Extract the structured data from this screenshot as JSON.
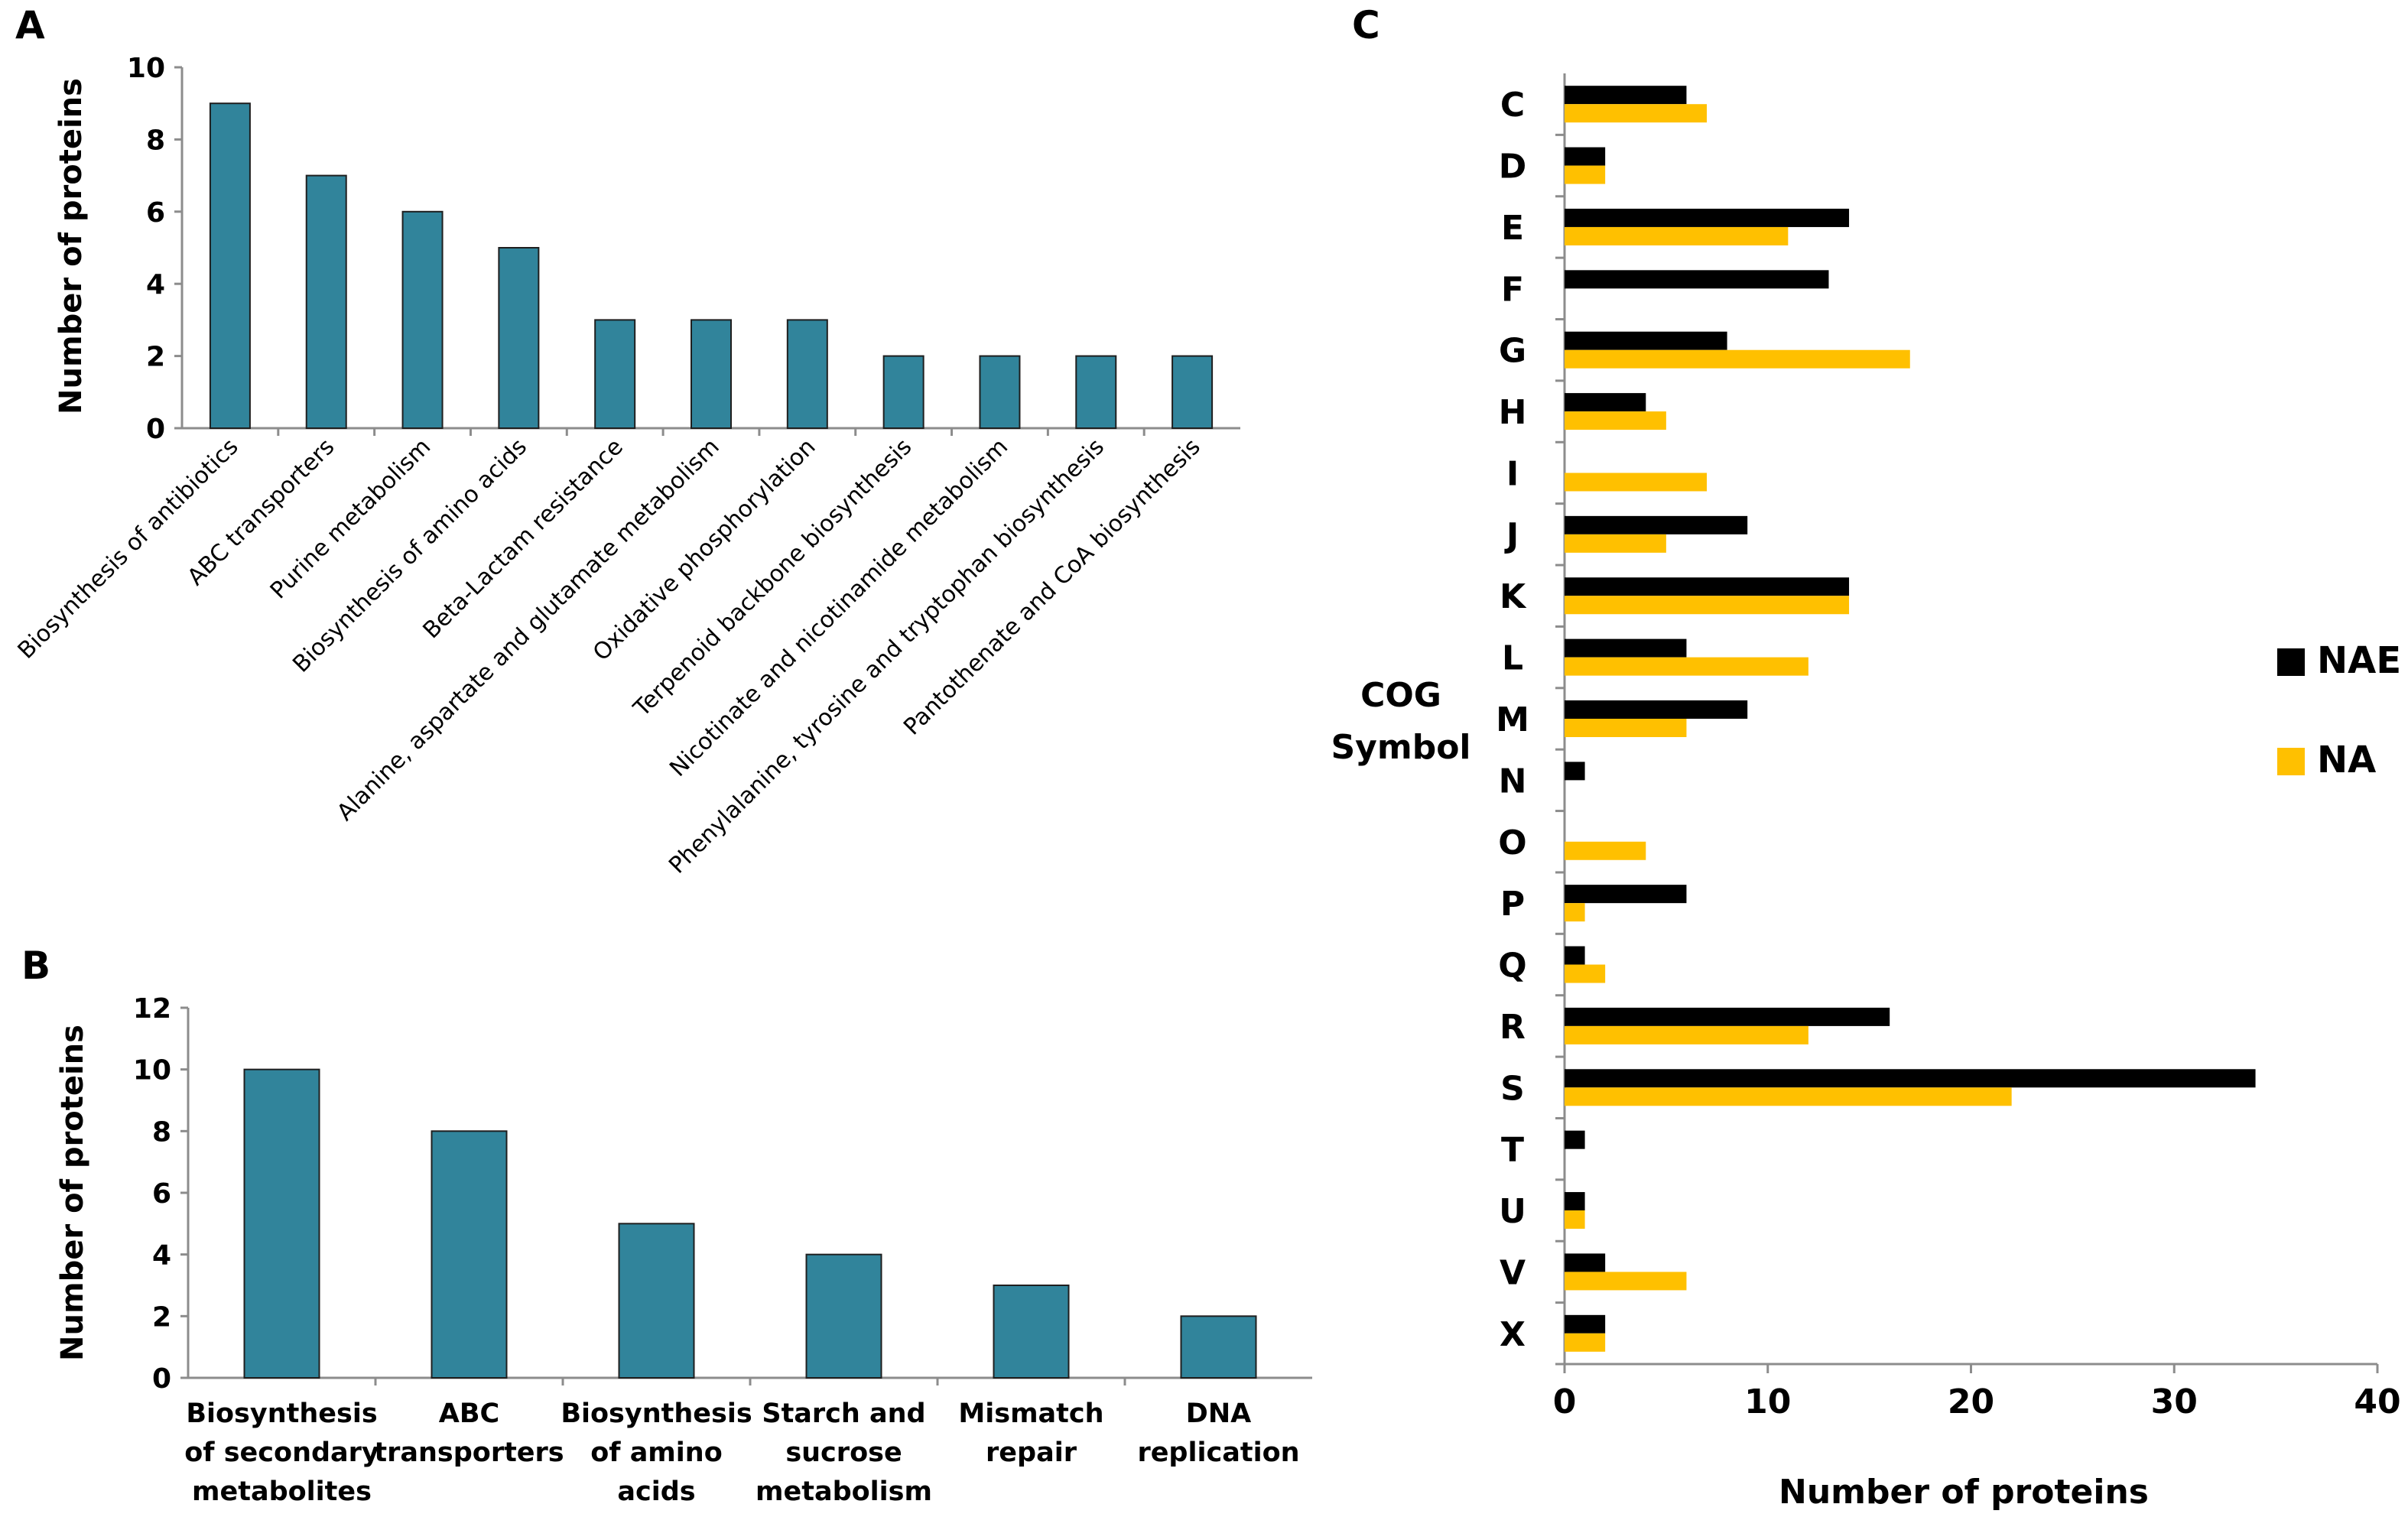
{
  "chart_data": [
    {
      "panel": "A",
      "type": "bar",
      "title": "",
      "xlabel": "",
      "ylabel": "Number of proteins",
      "ylim": [
        0,
        10
      ],
      "yticks": [
        0,
        2,
        4,
        6,
        8,
        10
      ],
      "categories": [
        "Biosynthesis of antibiotics",
        "ABC transporters",
        "Purine metabolism",
        "Biosynthesis of amino acids",
        "Beta-Lactam resistance",
        "Alanine, aspartate and glutamate metabolism",
        "Oxidative phosphorylation",
        "Terpenoid backbone biosynthesis",
        "Nicotinate and nicotinamide metabolism",
        "Phenylalanine, tyrosine and tryptophan biosynthesis",
        "Pantothenate and CoA biosynthesis"
      ],
      "values": [
        9,
        7,
        6,
        5,
        3,
        3,
        3,
        2,
        2,
        2,
        2
      ],
      "color": "#31849b"
    },
    {
      "panel": "B",
      "type": "bar",
      "title": "",
      "xlabel": "",
      "ylabel": "Number of proteins",
      "ylim": [
        0,
        12
      ],
      "yticks": [
        0,
        2,
        4,
        6,
        8,
        10,
        12
      ],
      "categories": [
        [
          "Biosynthesis",
          "of secondary",
          "metabolites"
        ],
        [
          "ABC",
          "transporters"
        ],
        [
          "Biosynthesis",
          "of amino",
          "acids"
        ],
        [
          "Starch and",
          "sucrose",
          "metabolism"
        ],
        [
          "Mismatch",
          "repair"
        ],
        [
          "DNA",
          "replication"
        ]
      ],
      "values": [
        10,
        8,
        5,
        4,
        3,
        2
      ],
      "color": "#31849b"
    },
    {
      "panel": "C",
      "type": "bar",
      "orientation": "horizontal",
      "title": "",
      "xlabel": "Number of proteins",
      "ylabel": [
        "COG",
        "Symbol"
      ],
      "xlim": [
        0,
        40
      ],
      "xticks": [
        0,
        10,
        20,
        30,
        40
      ],
      "categories": [
        "C",
        "D",
        "E",
        "F",
        "G",
        "H",
        "I",
        "J",
        "K",
        "L",
        "M",
        "N",
        "O",
        "P",
        "Q",
        "R",
        "S",
        "T",
        "U",
        "V",
        "X"
      ],
      "series": [
        {
          "name": "NAE",
          "color": "#000000",
          "values": [
            6,
            2,
            14,
            13,
            8,
            4,
            0,
            9,
            14,
            6,
            9,
            1,
            0,
            6,
            1,
            16,
            34,
            1,
            1,
            2,
            2
          ]
        },
        {
          "name": "NA",
          "color": "#ffc000",
          "values": [
            7,
            2,
            11,
            0,
            17,
            5,
            7,
            5,
            14,
            12,
            6,
            0,
            4,
            1,
            2,
            12,
            22,
            0,
            1,
            6,
            2
          ]
        }
      ],
      "legend": "right"
    }
  ]
}
